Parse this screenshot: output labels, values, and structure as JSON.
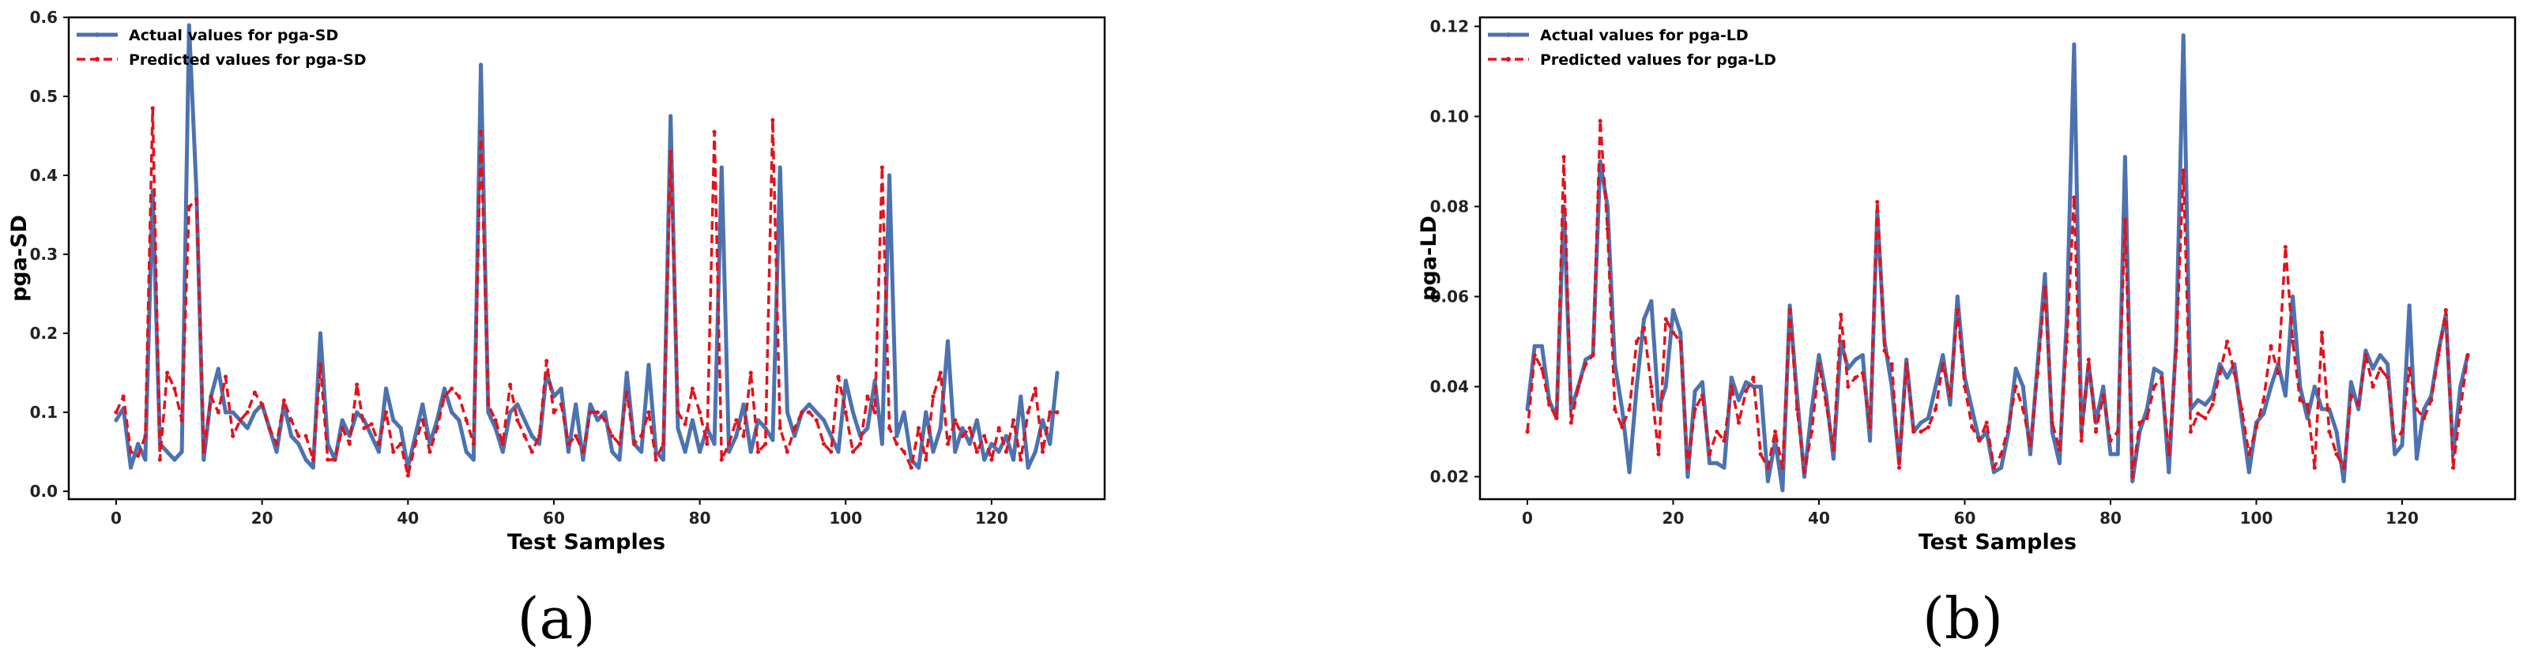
{
  "colors": {
    "actual": "#4c72b0",
    "predicted": "#e3121b"
  },
  "chart_data": [
    {
      "type": "line",
      "caption": "(a)",
      "xlabel": "Test Samples",
      "ylabel": "pga-SD",
      "xlim": [
        -6.5,
        135.5
      ],
      "ylim": [
        -0.01,
        0.6
      ],
      "xticks": [
        0,
        20,
        40,
        60,
        80,
        100,
        120
      ],
      "yticks": [
        0.0,
        0.1,
        0.2,
        0.3,
        0.4,
        0.5,
        0.6
      ],
      "ytick_labels": [
        "0.0",
        "0.1",
        "0.2",
        "0.3",
        "0.4",
        "0.5",
        "0.6"
      ],
      "legend_position": "top-left",
      "grid": false,
      "series": [
        {
          "name": "Actual values for pga-SD",
          "style": "solid",
          "values": [
            0.09,
            0.105,
            0.03,
            0.06,
            0.04,
            0.38,
            0.06,
            0.05,
            0.04,
            0.05,
            0.59,
            0.38,
            0.04,
            0.12,
            0.155,
            0.1,
            0.1,
            0.09,
            0.08,
            0.1,
            0.11,
            0.08,
            0.05,
            0.11,
            0.07,
            0.06,
            0.04,
            0.03,
            0.2,
            0.06,
            0.04,
            0.09,
            0.07,
            0.1,
            0.09,
            0.07,
            0.05,
            0.13,
            0.09,
            0.08,
            0.03,
            0.07,
            0.11,
            0.06,
            0.09,
            0.13,
            0.1,
            0.09,
            0.05,
            0.04,
            0.54,
            0.1,
            0.08,
            0.05,
            0.1,
            0.11,
            0.09,
            0.07,
            0.06,
            0.15,
            0.12,
            0.13,
            0.05,
            0.11,
            0.04,
            0.11,
            0.09,
            0.1,
            0.05,
            0.04,
            0.15,
            0.06,
            0.05,
            0.16,
            0.05,
            0.04,
            0.475,
            0.08,
            0.05,
            0.09,
            0.05,
            0.08,
            0.06,
            0.41,
            0.05,
            0.07,
            0.11,
            0.05,
            0.09,
            0.08,
            0.065,
            0.41,
            0.1,
            0.07,
            0.1,
            0.11,
            0.1,
            0.09,
            0.07,
            0.05,
            0.14,
            0.1,
            0.07,
            0.08,
            0.14,
            0.06,
            0.4,
            0.07,
            0.1,
            0.04,
            0.03,
            0.1,
            0.05,
            0.08,
            0.19,
            0.05,
            0.08,
            0.06,
            0.09,
            0.04,
            0.06,
            0.05,
            0.07,
            0.04,
            0.12,
            0.03,
            0.05,
            0.09,
            0.06,
            0.15
          ]
        },
        {
          "name": "Predicted values for pga-SD",
          "style": "dashed",
          "values": [
            0.1,
            0.12,
            0.05,
            0.045,
            0.07,
            0.485,
            0.04,
            0.15,
            0.13,
            0.09,
            0.36,
            0.37,
            0.05,
            0.12,
            0.1,
            0.145,
            0.07,
            0.09,
            0.1,
            0.125,
            0.11,
            0.08,
            0.06,
            0.115,
            0.09,
            0.07,
            0.07,
            0.04,
            0.16,
            0.04,
            0.04,
            0.08,
            0.06,
            0.135,
            0.08,
            0.085,
            0.06,
            0.1,
            0.05,
            0.06,
            0.02,
            0.06,
            0.09,
            0.05,
            0.08,
            0.12,
            0.13,
            0.12,
            0.09,
            0.06,
            0.455,
            0.11,
            0.09,
            0.06,
            0.135,
            0.09,
            0.07,
            0.05,
            0.07,
            0.165,
            0.1,
            0.11,
            0.06,
            0.07,
            0.05,
            0.1,
            0.1,
            0.09,
            0.07,
            0.06,
            0.125,
            0.06,
            0.07,
            0.1,
            0.04,
            0.06,
            0.43,
            0.1,
            0.085,
            0.13,
            0.1,
            0.06,
            0.455,
            0.04,
            0.06,
            0.09,
            0.07,
            0.15,
            0.05,
            0.06,
            0.47,
            0.08,
            0.05,
            0.08,
            0.1,
            0.1,
            0.09,
            0.06,
            0.05,
            0.145,
            0.1,
            0.05,
            0.06,
            0.12,
            0.1,
            0.41,
            0.08,
            0.06,
            0.05,
            0.03,
            0.08,
            0.04,
            0.12,
            0.15,
            0.06,
            0.09,
            0.07,
            0.08,
            0.05,
            0.07,
            0.04,
            0.08,
            0.05,
            0.09,
            0.04,
            0.1,
            0.13,
            0.05,
            0.1,
            0.1
          ]
        }
      ]
    },
    {
      "type": "line",
      "caption": "(b)",
      "xlabel": "Test Samples",
      "ylabel": "pga-LD",
      "xlim": [
        -6.5,
        135.5
      ],
      "ylim": [
        0.015,
        0.122
      ],
      "xticks": [
        0,
        20,
        40,
        60,
        80,
        100,
        120
      ],
      "yticks": [
        0.02,
        0.04,
        0.06,
        0.08,
        0.1,
        0.12
      ],
      "ytick_labels": [
        "0.02",
        "0.04",
        "0.06",
        "0.08",
        "0.10",
        "0.12"
      ],
      "legend_position": "top-left",
      "grid": false,
      "series": [
        {
          "name": "Actual values for pga-LD",
          "style": "solid",
          "values": [
            0.035,
            0.049,
            0.049,
            0.037,
            0.033,
            0.08,
            0.035,
            0.04,
            0.046,
            0.047,
            0.09,
            0.08,
            0.045,
            0.035,
            0.021,
            0.04,
            0.055,
            0.059,
            0.035,
            0.04,
            0.057,
            0.052,
            0.02,
            0.039,
            0.041,
            0.023,
            0.023,
            0.022,
            0.042,
            0.037,
            0.041,
            0.04,
            0.04,
            0.019,
            0.028,
            0.017,
            0.058,
            0.038,
            0.02,
            0.035,
            0.047,
            0.038,
            0.024,
            0.05,
            0.044,
            0.046,
            0.047,
            0.028,
            0.079,
            0.05,
            0.04,
            0.023,
            0.046,
            0.03,
            0.032,
            0.033,
            0.04,
            0.047,
            0.036,
            0.06,
            0.042,
            0.035,
            0.028,
            0.03,
            0.021,
            0.022,
            0.03,
            0.044,
            0.04,
            0.025,
            0.045,
            0.065,
            0.03,
            0.023,
            0.055,
            0.116,
            0.03,
            0.045,
            0.032,
            0.04,
            0.025,
            0.025,
            0.091,
            0.019,
            0.03,
            0.035,
            0.044,
            0.043,
            0.021,
            0.05,
            0.118,
            0.035,
            0.037,
            0.036,
            0.038,
            0.045,
            0.042,
            0.045,
            0.033,
            0.021,
            0.032,
            0.034,
            0.04,
            0.045,
            0.038,
            0.06,
            0.04,
            0.033,
            0.04,
            0.035,
            0.035,
            0.03,
            0.019,
            0.041,
            0.035,
            0.048,
            0.044,
            0.047,
            0.045,
            0.025,
            0.027,
            0.058,
            0.024,
            0.035,
            0.038,
            0.048,
            0.056,
            0.025,
            0.04,
            0.047
          ]
        },
        {
          "name": "Predicted values for pga-LD",
          "style": "dashed",
          "values": [
            0.03,
            0.047,
            0.044,
            0.036,
            0.033,
            0.091,
            0.032,
            0.04,
            0.045,
            0.047,
            0.099,
            0.075,
            0.035,
            0.031,
            0.035,
            0.05,
            0.053,
            0.04,
            0.025,
            0.055,
            0.052,
            0.05,
            0.022,
            0.035,
            0.038,
            0.025,
            0.03,
            0.028,
            0.04,
            0.032,
            0.039,
            0.042,
            0.025,
            0.022,
            0.03,
            0.022,
            0.057,
            0.035,
            0.021,
            0.03,
            0.045,
            0.036,
            0.026,
            0.056,
            0.04,
            0.042,
            0.043,
            0.031,
            0.081,
            0.048,
            0.045,
            0.022,
            0.045,
            0.03,
            0.03,
            0.031,
            0.035,
            0.045,
            0.038,
            0.057,
            0.04,
            0.031,
            0.028,
            0.032,
            0.022,
            0.025,
            0.031,
            0.04,
            0.035,
            0.027,
            0.043,
            0.062,
            0.032,
            0.026,
            0.05,
            0.082,
            0.028,
            0.046,
            0.03,
            0.038,
            0.028,
            0.03,
            0.077,
            0.02,
            0.032,
            0.033,
            0.04,
            0.042,
            0.025,
            0.048,
            0.088,
            0.03,
            0.034,
            0.033,
            0.036,
            0.043,
            0.05,
            0.043,
            0.035,
            0.025,
            0.031,
            0.037,
            0.049,
            0.043,
            0.071,
            0.05,
            0.037,
            0.036,
            0.022,
            0.052,
            0.03,
            0.025,
            0.022,
            0.038,
            0.036,
            0.047,
            0.04,
            0.044,
            0.042,
            0.028,
            0.03,
            0.044,
            0.035,
            0.033,
            0.037,
            0.047,
            0.057,
            0.022,
            0.035,
            0.047
          ]
        }
      ]
    }
  ]
}
